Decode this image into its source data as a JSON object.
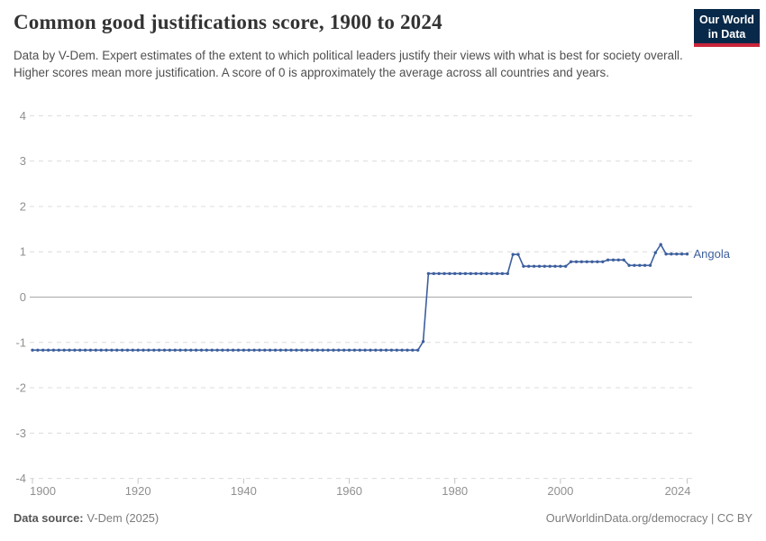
{
  "header": {
    "title": "Common good justifications score, 1900 to 2024",
    "subtitle": "Data by V-Dem. Expert estimates of the extent to which political leaders justify their views with what is best for society overall. Higher scores mean more justification. A score of 0 is approximately the average across all countries and years.",
    "logo": {
      "line1": "Our World",
      "line2": "in Data",
      "bg_color": "#082949",
      "stripe_color": "#c9253a"
    }
  },
  "footer": {
    "datasource_label": "Data source:",
    "datasource_value": "V-Dem (2025)",
    "credit": "OurWorldinData.org/democracy | CC BY"
  },
  "chart_data": {
    "type": "line",
    "title": "Common good justifications score, 1900 to 2024",
    "entity": "Angola",
    "xlabel": "",
    "ylabel": "",
    "x_range": [
      1900,
      2024
    ],
    "ylim": [
      -4,
      4
    ],
    "yticks": [
      4,
      3,
      2,
      1,
      0,
      -1,
      -2,
      -3,
      -4
    ],
    "xticks": [
      1900,
      1920,
      1940,
      1960,
      1980,
      2000,
      2024
    ],
    "grid": "dashed horizontal, solid zero line",
    "legend_position": "end-of-line label",
    "line_color": "#3d5f9e",
    "segments": [
      {
        "from": 1900,
        "to": 1973,
        "value": -1.17
      },
      {
        "from": 1974,
        "to": 1974,
        "value": -0.98
      },
      {
        "from": 1975,
        "to": 1990,
        "value": 0.52
      },
      {
        "from": 1991,
        "to": 1992,
        "value": 0.94
      },
      {
        "from": 1993,
        "to": 2001,
        "value": 0.68
      },
      {
        "from": 2002,
        "to": 2008,
        "value": 0.78
      },
      {
        "from": 2009,
        "to": 2012,
        "value": 0.82
      },
      {
        "from": 2013,
        "to": 2017,
        "value": 0.7
      },
      {
        "from": 2018,
        "to": 2018,
        "value": 0.98
      },
      {
        "from": 2019,
        "to": 2019,
        "value": 1.16
      },
      {
        "from": 2020,
        "to": 2024,
        "value": 0.95
      }
    ]
  }
}
